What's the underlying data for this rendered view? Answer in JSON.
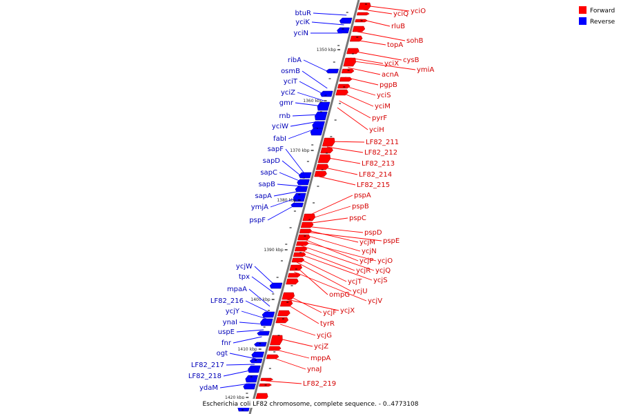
{
  "legend": {
    "forward": {
      "label": "Forward",
      "color": "#ff0000"
    },
    "reverse": {
      "label": "Reverse",
      "color": "#0000ff"
    }
  },
  "caption": "Escherichia coli LF82 chromosome, complete sequence. - 0..4773108",
  "ticks": [
    "1350 kbp",
    "1360 kbp",
    "1370 kbp",
    "1380 kbp",
    "1390 kbp",
    "1400 kbp",
    "1410 kbp",
    "1420 kbp"
  ],
  "forward_genes": [
    "yciO",
    "yciQ",
    "rluB",
    "sohB",
    "topA",
    "cysB",
    "yciX",
    "ymiA",
    "acnA",
    "pgpB",
    "yciS",
    "yciM",
    "pyrF",
    "yciH",
    "LF82_211",
    "LF82_212",
    "LF82_213",
    "LF82_214",
    "LF82_215",
    "pspA",
    "pspB",
    "pspC",
    "pspD",
    "ycjM",
    "pspE",
    "ycjN",
    "ycjP",
    "ycjO",
    "ycjQ",
    "ycjR",
    "ycjS",
    "ycjT",
    "ycjU",
    "ompG",
    "ycjV",
    "ycjF",
    "ycjX",
    "tyrR",
    "ycjG",
    "ycjZ",
    "mppA",
    "ynaJ",
    "LF82_219"
  ],
  "reverse_genes": [
    "btuR",
    "yciK",
    "yciN",
    "ribA",
    "osmB",
    "yciT",
    "yciZ",
    "gmr",
    "rnb",
    "yciW",
    "fabI",
    "sapF",
    "sapD",
    "sapC",
    "sapB",
    "sapA",
    "ymjA",
    "pspF",
    "ycjW",
    "tpx",
    "mpaA",
    "LF82_216",
    "ycjY",
    "ynaI",
    "uspE",
    "fnr",
    "ogt",
    "LF82_217",
    "LF82_218",
    "ydaM"
  ]
}
